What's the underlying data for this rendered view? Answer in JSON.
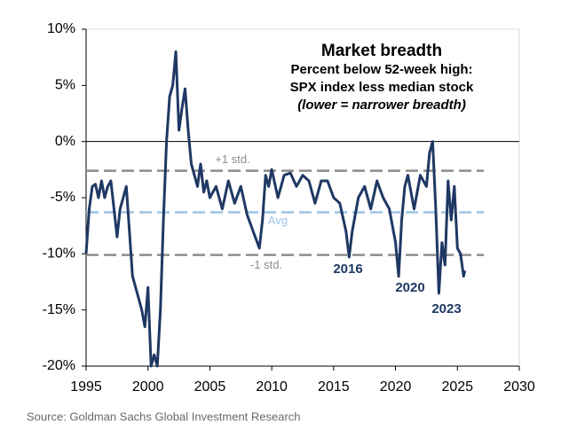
{
  "chart_data": {
    "type": "line",
    "title": "Market breadth",
    "subtitle": [
      "Percent below 52-week high:",
      "SPX index less median stock",
      "(lower = narrower breadth)"
    ],
    "source": "Source: Goldman Sachs Global Investment Research",
    "xlim": [
      1995,
      2030
    ],
    "xticks": [
      1995,
      2000,
      2005,
      2010,
      2015,
      2020,
      2025,
      2030
    ],
    "ylim": [
      -20,
      10
    ],
    "yticks": [
      {
        "value": -20,
        "label": "-20%"
      },
      {
        "value": -15,
        "label": "-15%"
      },
      {
        "value": -10,
        "label": "-10%"
      },
      {
        "value": -5,
        "label": "-5%"
      },
      {
        "value": 0,
        "label": "0%"
      },
      {
        "value": 5,
        "label": "5%"
      },
      {
        "value": 10,
        "label": "10%"
      }
    ],
    "reference_lines": [
      {
        "label": "+1 std.",
        "value": -2.6,
        "color": "#8c8c8c"
      },
      {
        "label": "Avg",
        "value": -6.3,
        "color": "#9dc3e6"
      },
      {
        "label": "-1 std.",
        "value": -10.1,
        "color": "#8c8c8c"
      }
    ],
    "annotations": [
      "2016",
      "2020",
      "2023"
    ],
    "series": [
      {
        "name": "SPX index less median stock",
        "color": "#1f3864",
        "x": [
          1995.0,
          1995.25,
          1995.5,
          1995.75,
          1996.0,
          1996.25,
          1996.5,
          1996.75,
          1997.0,
          1997.25,
          1997.5,
          1997.75,
          1998.0,
          1998.25,
          1998.5,
          1998.75,
          1999.0,
          1999.25,
          1999.5,
          1999.75,
          2000.0,
          2000.25,
          2000.5,
          2000.75,
          2001.0,
          2001.25,
          2001.5,
          2001.75,
          2002.0,
          2002.25,
          2002.5,
          2002.75,
          2003.0,
          2003.25,
          2003.5,
          2003.75,
          2004.0,
          2004.25,
          2004.5,
          2004.75,
          2005.0,
          2005.5,
          2006.0,
          2006.5,
          2007.0,
          2007.5,
          2008.0,
          2008.5,
          2009.0,
          2009.25,
          2009.5,
          2009.75,
          2010.0,
          2010.5,
          2011.0,
          2011.5,
          2012.0,
          2012.5,
          2013.0,
          2013.5,
          2014.0,
          2014.5,
          2015.0,
          2015.5,
          2016.0,
          2016.25,
          2016.5,
          2017.0,
          2017.5,
          2018.0,
          2018.5,
          2019.0,
          2019.5,
          2020.0,
          2020.25,
          2020.5,
          2020.75,
          2021.0,
          2021.5,
          2022.0,
          2022.5,
          2022.75,
          2023.0,
          2023.25,
          2023.5,
          2023.75,
          2024.0,
          2024.25,
          2024.5,
          2024.75,
          2025.0,
          2025.25,
          2025.5,
          2025.6
        ],
        "values": [
          -10,
          -6,
          -4,
          -3.8,
          -5,
          -3.5,
          -5,
          -4,
          -3.5,
          -6,
          -8.5,
          -6,
          -5,
          -4,
          -8,
          -12,
          -13,
          -14,
          -15,
          -16.5,
          -13,
          -20,
          -19,
          -20,
          -15,
          -7,
          0,
          4,
          5,
          8,
          1,
          3,
          4.7,
          1,
          -2,
          -3,
          -4,
          -2,
          -4.5,
          -3.5,
          -5,
          -4,
          -6,
          -3.5,
          -5.5,
          -4,
          -6.5,
          -8,
          -9.5,
          -7,
          -3,
          -4,
          -2.5,
          -5,
          -3,
          -2.8,
          -4,
          -3,
          -3.5,
          -5.5,
          -3.5,
          -3.5,
          -5,
          -5.5,
          -8,
          -10.3,
          -8,
          -5,
          -4,
          -6,
          -3.5,
          -5,
          -6,
          -9,
          -12,
          -7,
          -4,
          -3,
          -6,
          -3,
          -4,
          -1,
          0,
          -6,
          -13.5,
          -9,
          -11,
          -3.5,
          -7,
          -4,
          -9.5,
          -10,
          -12,
          -11.5
        ]
      }
    ]
  }
}
